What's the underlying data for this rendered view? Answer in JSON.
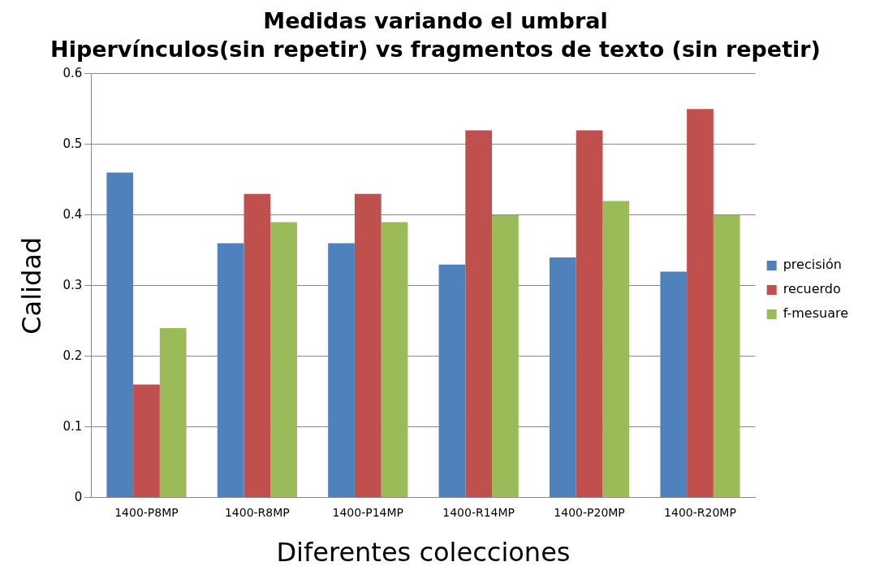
{
  "chart_data": {
    "type": "bar",
    "title": "Medidas variando el umbral",
    "subtitle": "Hipervínculos(sin repetir) vs fragmentos de texto (sin repetir)",
    "xlabel": "Diferentes colecciones",
    "ylabel": "Calidad",
    "categories": [
      "1400-P8MP",
      "1400-R8MP",
      "1400-P14MP",
      "1400-R14MP",
      "1400-P20MP",
      "1400-R20MP"
    ],
    "series": [
      {
        "name": "precisión",
        "color": "#4f81bd",
        "values": [
          0.46,
          0.36,
          0.36,
          0.33,
          0.34,
          0.32
        ]
      },
      {
        "name": "recuerdo",
        "color": "#c0504d",
        "values": [
          0.16,
          0.43,
          0.43,
          0.52,
          0.52,
          0.55
        ]
      },
      {
        "name": "f-mesuare",
        "color": "#9bbb59",
        "values": [
          0.24,
          0.39,
          0.39,
          0.4,
          0.42,
          0.4
        ]
      }
    ],
    "ylim": [
      0,
      0.6
    ],
    "yticks": [
      0,
      0.1,
      0.2,
      0.3,
      0.4,
      0.5,
      0.6
    ],
    "grid": "y",
    "legend": "right"
  }
}
